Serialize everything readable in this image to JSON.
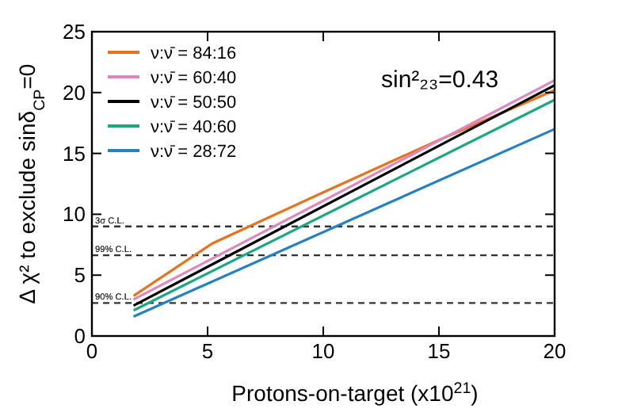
{
  "chart_data": {
    "type": "line",
    "xlabel": "Protons-on-target (x10$^{21}$)",
    "ylabel": "Δ χ² to exclude sinδ$_{CP}$=0",
    "annotations": [
      "sin²₂₃=0.43"
    ],
    "xlim": [
      0,
      20
    ],
    "ylim": [
      0,
      25
    ],
    "xticks": [
      0,
      5,
      10,
      15,
      20
    ],
    "yticks": [
      0,
      5,
      10,
      15,
      20,
      25
    ],
    "legend": "top left",
    "grid": false,
    "line_style": "solid",
    "marker": "none",
    "series": [
      {
        "name": "ν:ν̄ = 84:16",
        "color": "#e8731c",
        "x": [
          1.8,
          5.2,
          10,
          15,
          20
        ],
        "values": [
          3.3,
          7.6,
          11.8,
          16.1,
          20.2
        ]
      },
      {
        "name": "ν:ν̄ = 60:40",
        "color": "#e086c0",
        "x": [
          1.8,
          20
        ],
        "values": [
          3.0,
          21.0
        ]
      },
      {
        "name": "ν:ν̄ = 50:50",
        "color": "#000000",
        "x": [
          1.8,
          20
        ],
        "values": [
          2.5,
          20.6
        ]
      },
      {
        "name": "ν:ν̄ = 40:60",
        "color": "#1aa882",
        "x": [
          1.8,
          20
        ],
        "values": [
          2.1,
          19.4
        ]
      },
      {
        "name": "ν:ν̄ = 28:72",
        "color": "#2381c4",
        "x": [
          1.8,
          20
        ],
        "values": [
          1.6,
          17.0
        ]
      }
    ],
    "ref_lines": [
      {
        "axis": "y",
        "value": 9,
        "label": "3σ C.L.",
        "color": "#333333",
        "line_style": "dashed"
      },
      {
        "axis": "y",
        "value": 6.63,
        "label": "99% C.L.",
        "color": "#333333",
        "line_style": "dashed"
      },
      {
        "axis": "y",
        "value": 2.71,
        "label": "90% C.L.",
        "color": "#333333",
        "line_style": "dashed"
      }
    ]
  }
}
